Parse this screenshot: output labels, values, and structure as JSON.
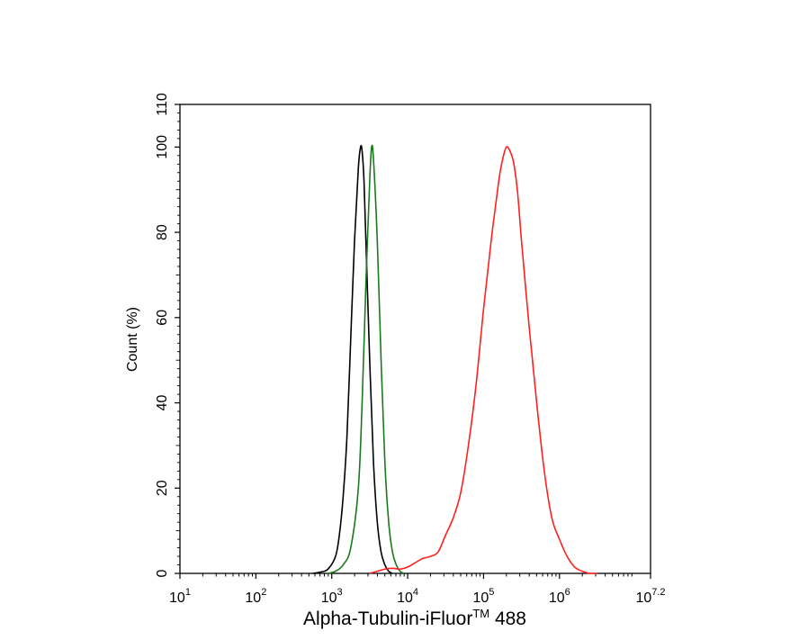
{
  "chart_data": {
    "type": "line",
    "xlabel": "Alpha-Tubulin-iFluor",
    "xlabel_superscript": "TM",
    "xlabel_suffix": " 488",
    "ylabel": "Count (%)",
    "x_scale": "log",
    "xlim": [
      10,
      15848932
    ],
    "ylim": [
      0,
      110
    ],
    "x_ticks": [
      {
        "value": 10,
        "base": "10",
        "exp": "1"
      },
      {
        "value": 100,
        "base": "10",
        "exp": "2"
      },
      {
        "value": 1000,
        "base": "10",
        "exp": "3"
      },
      {
        "value": 10000,
        "base": "10",
        "exp": "4"
      },
      {
        "value": 100000,
        "base": "10",
        "exp": "5"
      },
      {
        "value": 1000000,
        "base": "10",
        "exp": "6"
      },
      {
        "value": 15848932,
        "base": "10",
        "exp": "7.2"
      }
    ],
    "y_ticks": [
      "0",
      "20",
      "40",
      "60",
      "80",
      "100",
      "110"
    ],
    "grid": false,
    "series": [
      {
        "color": "#000000",
        "x": [
          562,
          708,
          891,
          1122,
          1259,
          1413,
          1585,
          1778,
          1995,
          2239,
          2399,
          2512,
          2661,
          2818,
          3162,
          3548,
          3981,
          4467,
          5012,
          5623,
          6310
        ],
        "y": [
          0,
          0.3,
          1,
          4,
          9,
          18,
          32,
          55,
          78,
          95,
          100,
          99,
          92,
          78,
          50,
          26,
          12,
          5,
          2,
          0.5,
          0
        ]
      },
      {
        "color": "#1a7a1a",
        "x": [
          891,
          1122,
          1413,
          1778,
          2239,
          2512,
          2818,
          3162,
          3350,
          3548,
          3981,
          4467,
          5012,
          5623,
          6310,
          7079,
          7943,
          8913
        ],
        "y": [
          0,
          0.5,
          2,
          6,
          20,
          40,
          68,
          92,
          100,
          97,
          78,
          50,
          26,
          12,
          5,
          2,
          0.5,
          0
        ]
      },
      {
        "color": "#ff2020",
        "x": [
          3162,
          3981,
          5012,
          6310,
          7943,
          10000,
          12589,
          15849,
          19953,
          25119,
          31623,
          39811,
          50119,
          63096,
          79433,
          100000,
          125893,
          158489,
          177828,
          199526,
          223872,
          251189,
          281838,
          316228,
          398107,
          501187,
          630957,
          794328,
          1000000,
          1258925,
          1584893,
          1995262,
          2511886,
          3162278
        ],
        "y": [
          0,
          0.5,
          1,
          1.2,
          1,
          1.5,
          2.5,
          3.5,
          4,
          5,
          9,
          13,
          19,
          30,
          44,
          62,
          78,
          92,
          97,
          100,
          99,
          96,
          89,
          78,
          58,
          40,
          24,
          13,
          8,
          4,
          1.5,
          0.5,
          0,
          0
        ]
      }
    ]
  }
}
